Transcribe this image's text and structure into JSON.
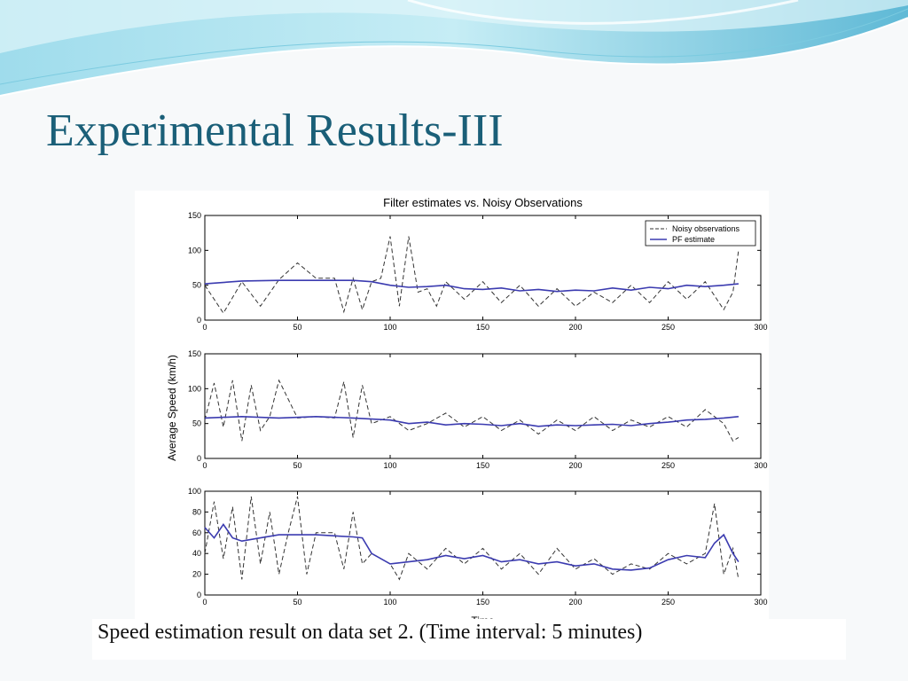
{
  "slide": {
    "title": "Experimental Results-III",
    "caption": "Speed estimation result on data set 2. (Time interval: 5 minutes)"
  },
  "colors": {
    "title": "#1a5f78",
    "noisy": "#333333",
    "pf": "#3b3bb0",
    "wave_light": "#c9eef6",
    "wave_dark": "#5ab6d4"
  },
  "chart_data": {
    "type": "line",
    "title": "Filter estimates vs. Noisy Observations",
    "xlabel": "Time",
    "ylabel": "Average Speed (km/h)",
    "legend": {
      "placement": "top-right",
      "entries": [
        "Noisy observations",
        "PF estimate"
      ]
    },
    "x_tick_labels": [
      "0",
      "50",
      "100",
      "150",
      "200",
      "250",
      "300"
    ],
    "panels": [
      {
        "xlim": [
          0,
          300
        ],
        "ylim": [
          0,
          150
        ],
        "y_tick_labels": [
          "0",
          "50",
          "100",
          "150"
        ],
        "legend_shown": true,
        "series": [
          {
            "name": "Noisy observations",
            "style": "dashed",
            "x": [
              0,
              10,
              20,
              30,
              40,
              50,
              60,
              70,
              75,
              80,
              85,
              90,
              95,
              100,
              105,
              110,
              115,
              120,
              125,
              130,
              140,
              150,
              160,
              170,
              180,
              190,
              200,
              210,
              220,
              230,
              240,
              250,
              260,
              270,
              280,
              285,
              288
            ],
            "y": [
              50,
              10,
              55,
              20,
              58,
              82,
              60,
              60,
              12,
              60,
              15,
              55,
              60,
              120,
              20,
              120,
              40,
              45,
              20,
              55,
              30,
              55,
              25,
              50,
              20,
              45,
              20,
              40,
              25,
              50,
              25,
              55,
              30,
              55,
              15,
              40,
              100
            ]
          },
          {
            "name": "PF estimate",
            "style": "solid",
            "x": [
              0,
              20,
              40,
              60,
              80,
              90,
              100,
              110,
              120,
              130,
              140,
              150,
              160,
              170,
              180,
              190,
              200,
              210,
              220,
              230,
              240,
              250,
              260,
              270,
              280,
              288
            ],
            "y": [
              52,
              56,
              57,
              57,
              57,
              55,
              50,
              47,
              48,
              50,
              45,
              44,
              46,
              42,
              44,
              41,
              43,
              42,
              46,
              43,
              47,
              45,
              50,
              48,
              50,
              52
            ]
          }
        ]
      },
      {
        "xlim": [
          0,
          300
        ],
        "ylim": [
          0,
          150
        ],
        "y_tick_labels": [
          "0",
          "50",
          "100",
          "150"
        ],
        "legend_shown": false,
        "series": [
          {
            "name": "Noisy observations",
            "style": "dashed",
            "x": [
              0,
              5,
              10,
              15,
              20,
              25,
              30,
              35,
              40,
              50,
              60,
              70,
              75,
              80,
              85,
              90,
              100,
              110,
              120,
              130,
              140,
              150,
              160,
              170,
              180,
              190,
              200,
              210,
              220,
              230,
              240,
              250,
              260,
              270,
              280,
              285,
              288
            ],
            "y": [
              55,
              108,
              45,
              112,
              25,
              105,
              40,
              60,
              112,
              58,
              60,
              58,
              110,
              30,
              105,
              50,
              60,
              40,
              50,
              65,
              45,
              60,
              40,
              55,
              35,
              55,
              40,
              60,
              40,
              55,
              45,
              60,
              45,
              70,
              50,
              25,
              30
            ]
          },
          {
            "name": "PF estimate",
            "style": "solid",
            "x": [
              0,
              20,
              40,
              60,
              80,
              100,
              110,
              120,
              130,
              140,
              150,
              160,
              170,
              180,
              190,
              200,
              210,
              220,
              230,
              240,
              250,
              260,
              270,
              280,
              288
            ],
            "y": [
              58,
              60,
              58,
              60,
              58,
              55,
              50,
              52,
              48,
              50,
              49,
              47,
              50,
              46,
              48,
              47,
              48,
              49,
              47,
              50,
              52,
              55,
              56,
              58,
              60
            ]
          }
        ]
      },
      {
        "xlim": [
          0,
          300
        ],
        "ylim": [
          0,
          100
        ],
        "y_tick_labels": [
          "0",
          "20",
          "40",
          "60",
          "80",
          "100"
        ],
        "legend_shown": false,
        "series": [
          {
            "name": "Noisy observations",
            "style": "dashed",
            "x": [
              0,
              5,
              10,
              15,
              20,
              25,
              30,
              35,
              40,
              45,
              50,
              55,
              60,
              70,
              75,
              80,
              85,
              90,
              100,
              105,
              110,
              120,
              130,
              140,
              150,
              160,
              170,
              180,
              190,
              200,
              210,
              220,
              230,
              240,
              250,
              260,
              270,
              275,
              280,
              285,
              288
            ],
            "y": [
              40,
              90,
              35,
              85,
              15,
              95,
              30,
              80,
              20,
              60,
              95,
              20,
              60,
              60,
              25,
              80,
              30,
              40,
              30,
              15,
              40,
              25,
              45,
              30,
              45,
              25,
              40,
              20,
              45,
              25,
              35,
              20,
              30,
              25,
              40,
              30,
              40,
              88,
              20,
              45,
              15
            ]
          },
          {
            "name": "PF estimate",
            "style": "solid",
            "x": [
              0,
              5,
              10,
              15,
              20,
              30,
              40,
              50,
              60,
              70,
              80,
              85,
              90,
              100,
              110,
              120,
              130,
              140,
              150,
              160,
              170,
              180,
              190,
              200,
              210,
              220,
              230,
              240,
              250,
              260,
              270,
              275,
              280,
              285,
              288
            ],
            "y": [
              65,
              55,
              68,
              55,
              52,
              55,
              58,
              58,
              58,
              57,
              56,
              55,
              40,
              30,
              32,
              34,
              38,
              35,
              38,
              32,
              34,
              30,
              32,
              28,
              30,
              25,
              24,
              26,
              34,
              38,
              36,
              50,
              58,
              40,
              32
            ]
          }
        ]
      }
    ]
  }
}
